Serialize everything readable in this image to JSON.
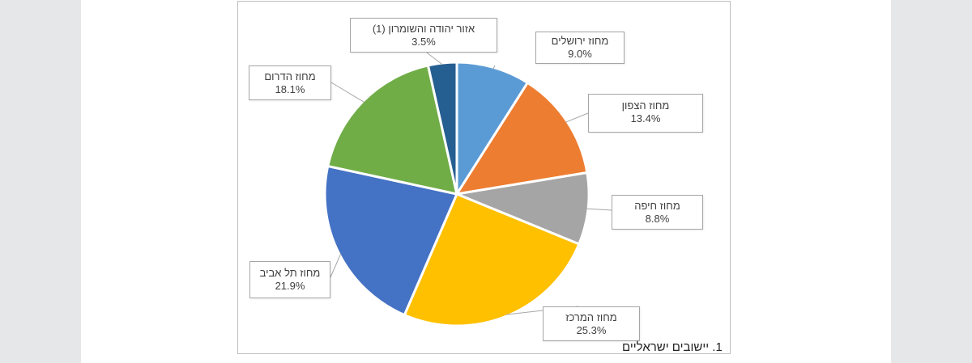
{
  "chart_data": {
    "type": "pie",
    "caption": "1. יישובים ישראליים",
    "slices": [
      {
        "label": "מחוז ירושלים",
        "value": 9.0,
        "display": "9.0%",
        "color": "#5b9bd5"
      },
      {
        "label": "מחוז הצפון",
        "value": 13.4,
        "display": "13.4%",
        "color": "#ed7d31"
      },
      {
        "label": "מחוז חיפה",
        "value": 8.8,
        "display": "8.8%",
        "color": "#a5a5a5"
      },
      {
        "label": "מחוז המרכז",
        "value": 25.3,
        "display": "25.3%",
        "color": "#ffc000"
      },
      {
        "label": "מחוז תל אביב",
        "value": 21.9,
        "display": "21.9%",
        "color": "#4472c4"
      },
      {
        "label": "מחוז הדרום",
        "value": 18.1,
        "display": "18.1%",
        "color": "#70ad47"
      },
      {
        "label": "אזור יהודה והשומרון (1)",
        "value": 3.5,
        "display": "3.5%",
        "color": "#255e91"
      }
    ]
  }
}
